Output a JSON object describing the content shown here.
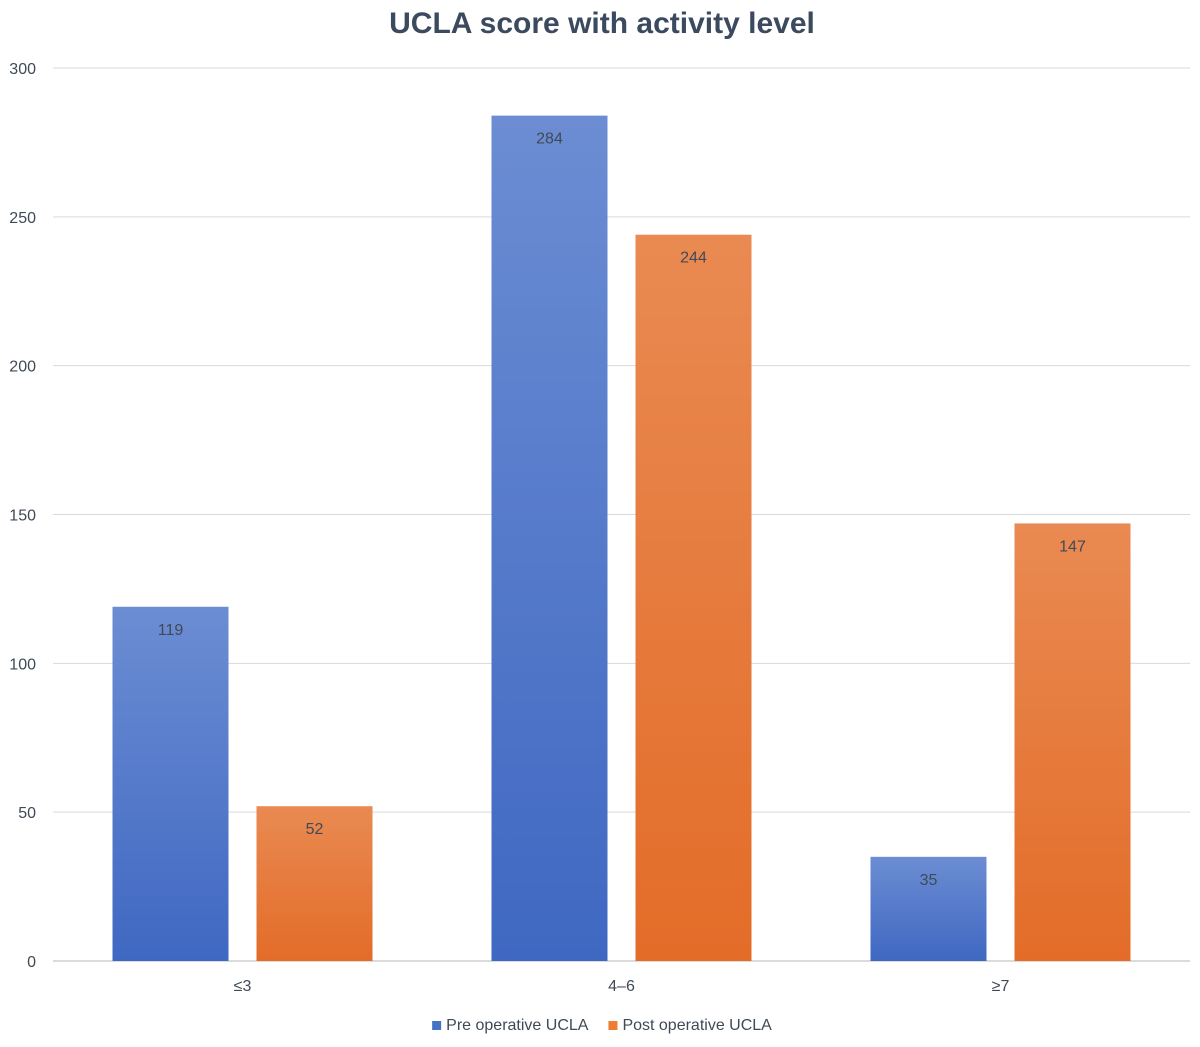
{
  "chart_data": {
    "type": "bar",
    "title": "UCLA score with activity level",
    "categories": [
      "≤3",
      "4–6",
      "≥7"
    ],
    "series": [
      {
        "name": "Pre operative UCLA",
        "values": [
          119,
          284,
          35
        ],
        "color": "#4472c4"
      },
      {
        "name": "Post operative UCLA",
        "values": [
          52,
          244,
          147
        ],
        "color": "#ed7d31"
      }
    ],
    "ylim": [
      0,
      300
    ],
    "yticks": [
      0,
      50,
      100,
      150,
      200,
      250,
      300
    ],
    "xlabel": "",
    "ylabel": "",
    "grid": true,
    "legend": "bottom-center",
    "data_labels": true
  }
}
